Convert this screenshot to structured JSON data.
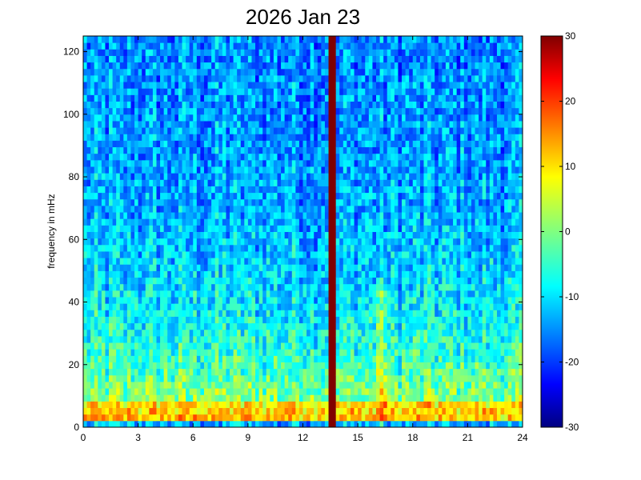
{
  "chart_data": {
    "type": "heatmap",
    "title": "2026 Jan 23",
    "xlabel": "",
    "ylabel": "frequency in mHz",
    "xlim": [
      0,
      24
    ],
    "ylim": [
      0,
      125
    ],
    "x_ticks": [
      "0",
      "3",
      "6",
      "9",
      "12",
      "15",
      "18",
      "21",
      "24"
    ],
    "y_ticks": [
      "0",
      "20",
      "40",
      "60",
      "80",
      "100",
      "120"
    ],
    "colorbar": {
      "range": [
        -30,
        30
      ],
      "ticks": [
        "-30",
        "-20",
        "-10",
        "0",
        "10",
        "20",
        "30"
      ],
      "colormap": "jet"
    },
    "features": {
      "background_level_high_freq": -15,
      "background_level_low_freq": 5,
      "low_freq_band_level": 15,
      "saturated_column_hour": 13.6,
      "saturated_column_level": 30
    }
  }
}
